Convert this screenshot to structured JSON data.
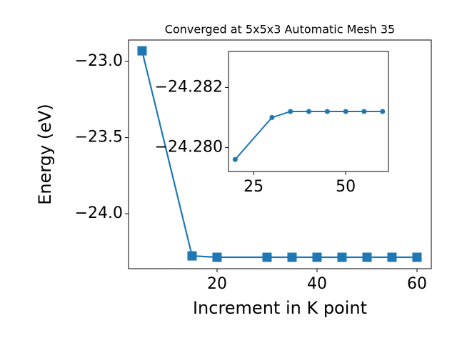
{
  "chart_data": [
    {
      "type": "line",
      "title": "Converged at 5x5x3 Automatic Mesh 35",
      "xlabel": "Increment in K point",
      "ylabel": "Energy (eV)",
      "x": [
        5,
        15,
        20,
        30,
        35,
        40,
        45,
        50,
        55,
        60
      ],
      "series": [
        {
          "color": "#1f77b4",
          "marker": "square",
          "values": [
            -22.93,
            -24.277,
            -24.286,
            -24.286,
            -24.286,
            -24.286,
            -24.286,
            -24.286,
            -24.286,
            -24.286
          ]
        }
      ],
      "xlim": [
        2.29,
        62.86
      ],
      "xticks": [
        20,
        40,
        60
      ],
      "ylim": [
        -24.361,
        -22.859
      ],
      "yticks": [
        {
          "value": -24.0,
          "label": "−24.0"
        },
        {
          "value": -23.5,
          "label": "−23.5"
        },
        {
          "value": -23.0,
          "label": "−23.0"
        }
      ]
    },
    {
      "type": "line",
      "x": [
        20,
        30,
        35,
        40,
        45,
        50,
        55,
        60
      ],
      "series": [
        {
          "color": "#1f77b4",
          "marker": "circle",
          "values": [
            -24.2796,
            -24.281,
            -24.2812,
            -24.2812,
            -24.2812,
            -24.2812,
            -24.2812,
            -24.2812
          ]
        }
      ],
      "xlim": [
        18.2,
        61.6
      ],
      "xticks": [
        25,
        50
      ],
      "ylim": [
        -24.2792,
        -24.2832
      ],
      "yticks": [
        {
          "value": -24.28,
          "label": "−24.280"
        },
        {
          "value": -24.282,
          "label": "−24.282"
        }
      ]
    }
  ]
}
